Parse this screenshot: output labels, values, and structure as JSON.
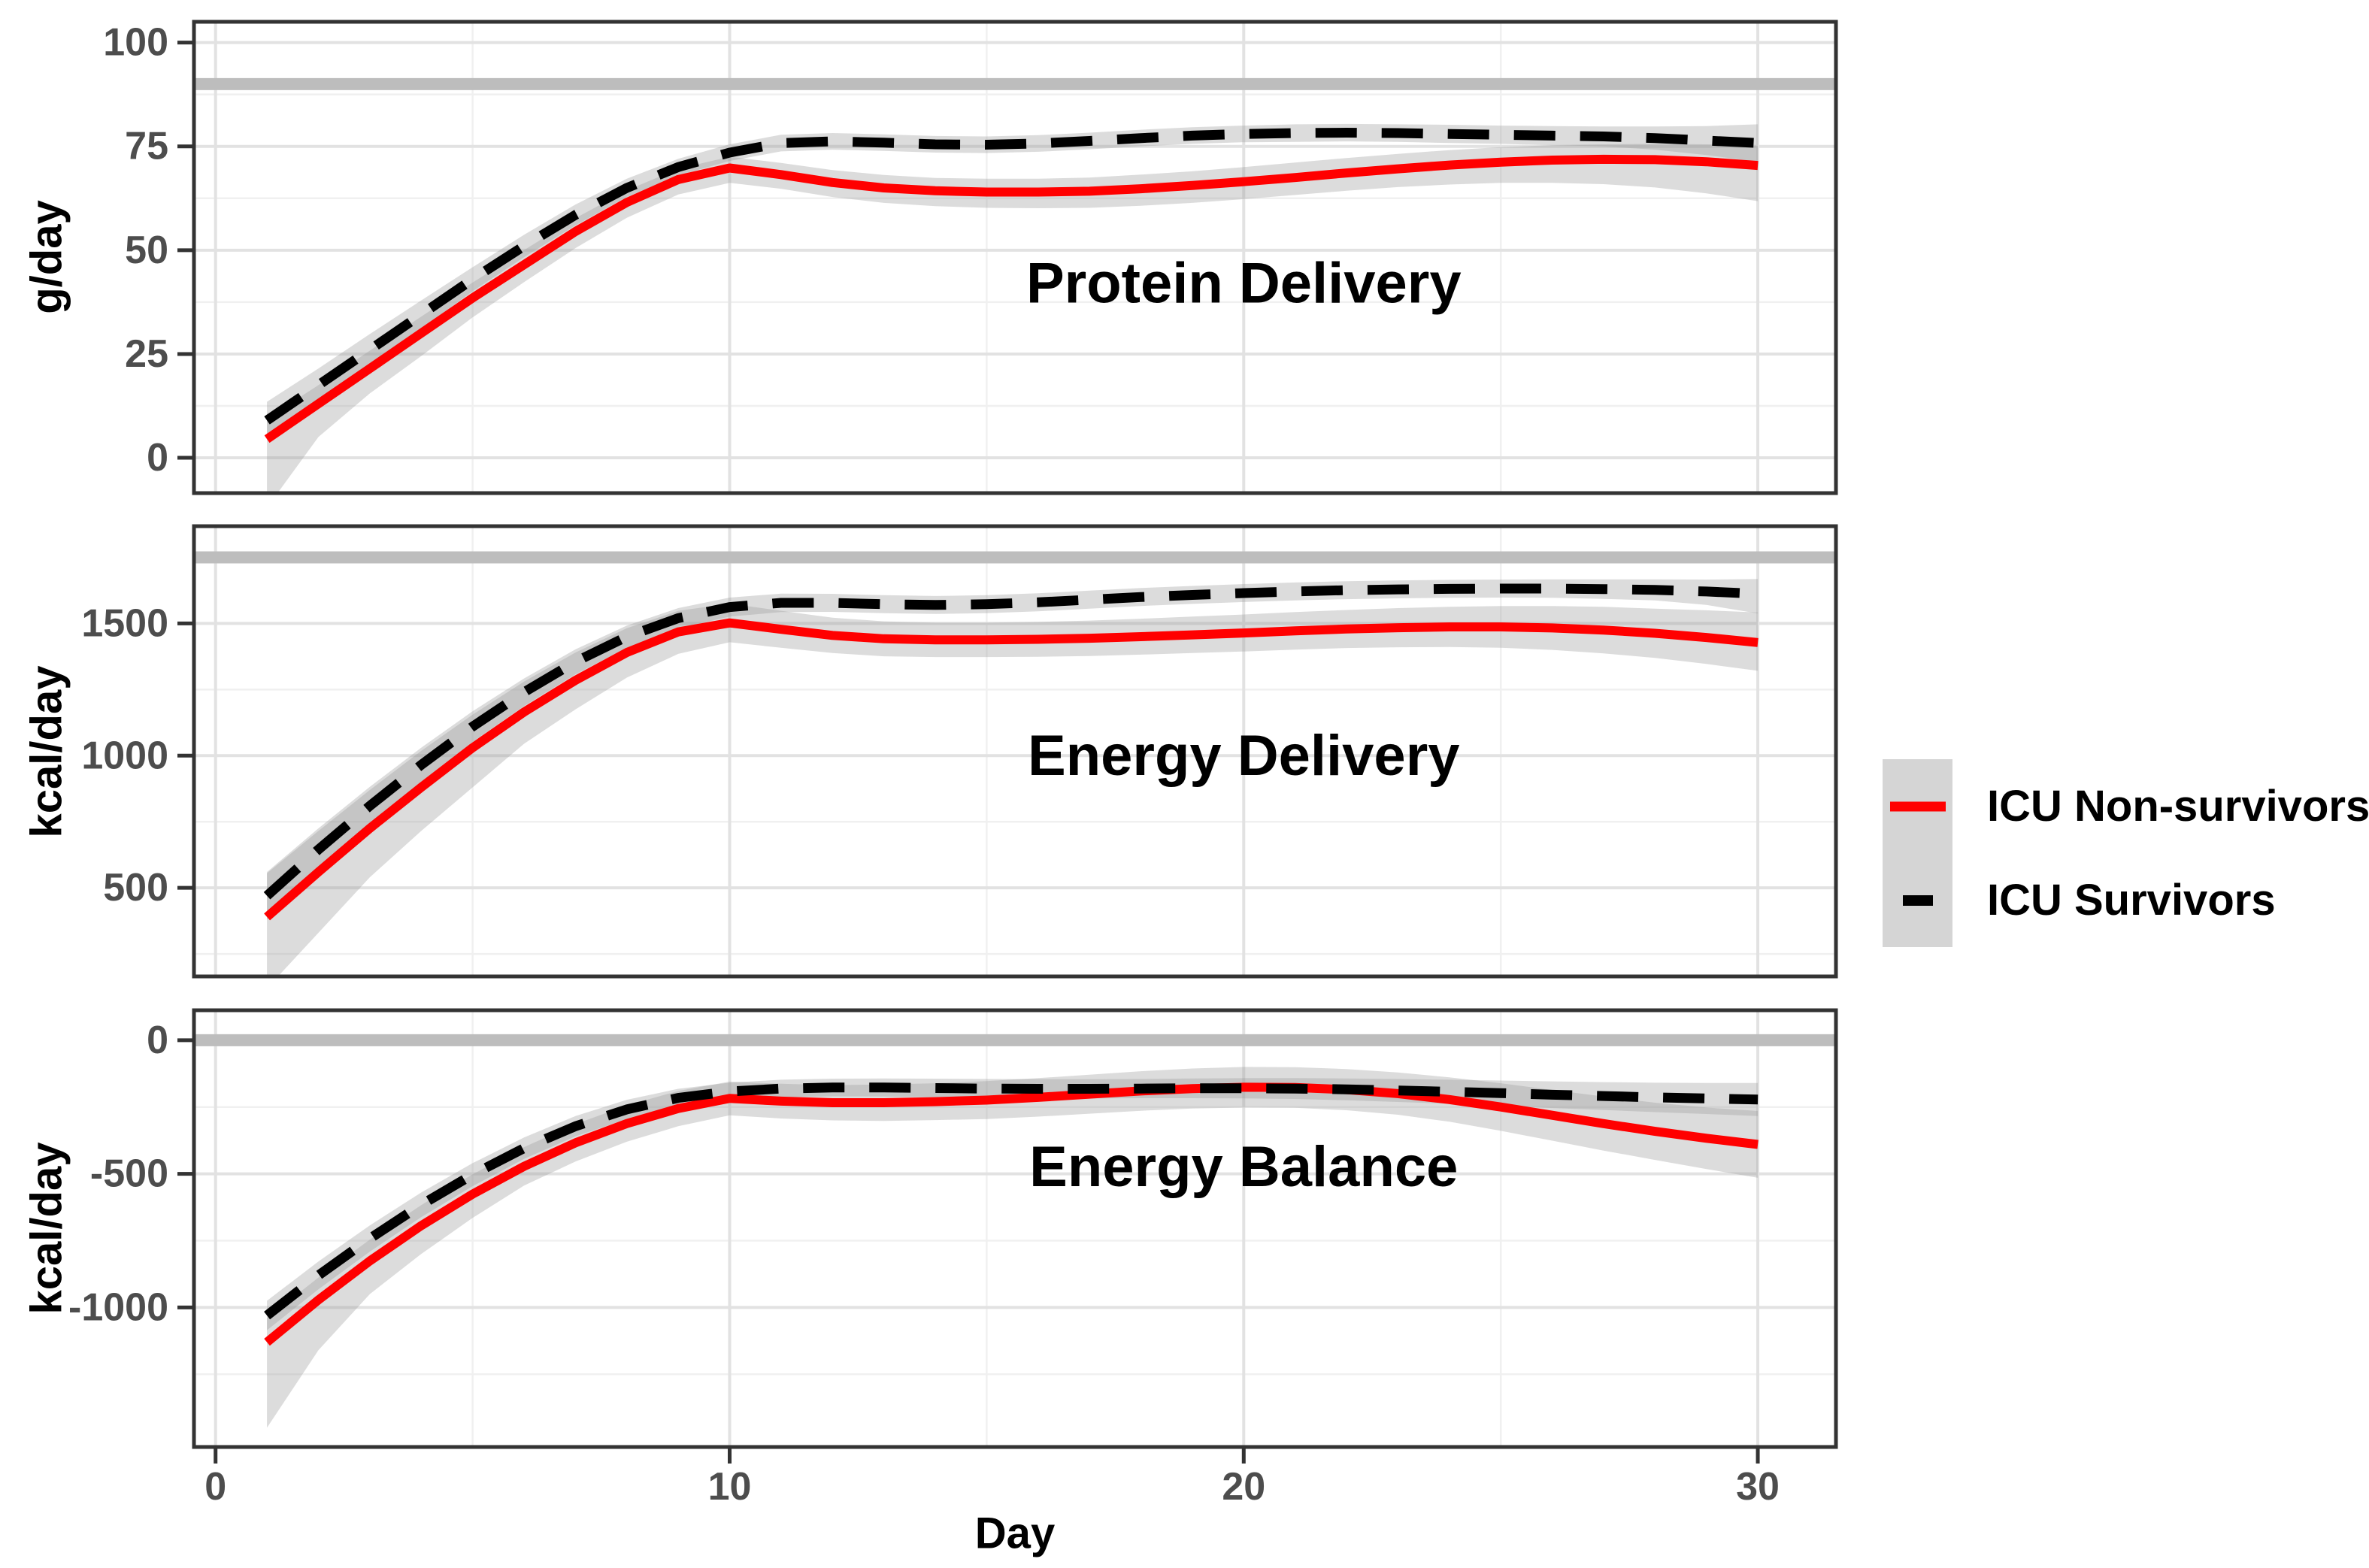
{
  "figure": {
    "kind": "faceted line chart",
    "background": "#ffffff"
  },
  "colors": {
    "non_survivor_line": "#ff0000",
    "survivor_line": "#000000",
    "ci_band": "#999999",
    "ci_band_opacity": 0.34,
    "reference_line": "#bdbdbd",
    "grid_major": "#e2e2e2",
    "grid_minor": "#f0f0f0",
    "panel_border": "#333333",
    "tick_label": "#4d4d4d",
    "legend_key_bg": "#d5d5d5"
  },
  "x_axis": {
    "title": "Day",
    "ticks": [
      0,
      10,
      20,
      30
    ],
    "tick_labels": [
      "0",
      "10",
      "20",
      "30"
    ],
    "minor_ticks": [
      5,
      15,
      25
    ],
    "domain": [
      -0.42,
      31.52
    ]
  },
  "legend": {
    "items": [
      {
        "label": "ICU Non-survivors",
        "series": "non_survivor",
        "line_style": "solid",
        "color": "#ff0000"
      },
      {
        "label": "ICU Survivors",
        "series": "survivor",
        "line_style": "dashed",
        "color": "#000000"
      }
    ]
  },
  "chart_data": [
    {
      "type": "line",
      "title": "Protein Delivery",
      "ylabel": "g/day",
      "annotation": {
        "x": 20,
        "y": 42,
        "label": "Protein Delivery"
      },
      "reference_line": 90,
      "ydomain": [
        -8.5,
        105
      ],
      "yticks": [
        0,
        25,
        50,
        75,
        100
      ],
      "ytick_labels": [
        "0",
        "25",
        "50",
        "75",
        "100"
      ],
      "yminor": [
        12.5,
        37.5,
        62.5,
        87.5
      ],
      "x": [
        1,
        2,
        3,
        4,
        5,
        6,
        7,
        8,
        9,
        10,
        11,
        12,
        13,
        14,
        15,
        16,
        17,
        18,
        19,
        20,
        21,
        22,
        23,
        24,
        25,
        26,
        27,
        28,
        29,
        30
      ],
      "series": [
        {
          "name": "ICU Non-survivors",
          "style": "solid",
          "values": [
            4.5,
            13,
            21.5,
            30,
            38.5,
            46.5,
            54.5,
            61.5,
            67,
            69.8,
            68.2,
            66.3,
            65,
            64.3,
            64,
            64,
            64.2,
            64.8,
            65.6,
            66.5,
            67.5,
            68.6,
            69.6,
            70.5,
            71.2,
            71.7,
            71.9,
            71.8,
            71.3,
            70.4
          ],
          "upper": [
            9.5,
            17.5,
            25.8,
            34,
            42.2,
            50,
            57.7,
            64.4,
            69.6,
            72.5,
            71,
            69.3,
            68.1,
            67.4,
            67.2,
            67.2,
            67.5,
            68.2,
            69,
            70,
            71.1,
            72.2,
            73.2,
            74.1,
            74.8,
            75.3,
            75.5,
            75.6,
            75.5,
            75.1
          ],
          "lower": [
            -12,
            5,
            15.5,
            24.5,
            33.8,
            42.3,
            50.5,
            57.8,
            63.4,
            66.2,
            64.8,
            62.8,
            61.4,
            60.6,
            60.2,
            60.1,
            60.2,
            60.7,
            61.4,
            62.3,
            63.3,
            64.3,
            65.2,
            65.8,
            66.2,
            66.2,
            65.9,
            65.1,
            63.7,
            61.8
          ]
        },
        {
          "name": "ICU Survivors",
          "style": "dashed",
          "values": [
            9,
            17.5,
            26,
            34.5,
            43,
            51,
            58.5,
            65,
            70,
            73.5,
            75.8,
            76.2,
            75.9,
            75.5,
            75.4,
            75.7,
            76.3,
            77,
            77.6,
            78,
            78.2,
            78.3,
            78.2,
            78,
            77.8,
            77.6,
            77.4,
            77,
            76.4,
            75.8
          ],
          "upper": [
            13.5,
            21.5,
            29.8,
            37.9,
            45.9,
            53.7,
            61,
            67.2,
            72,
            75.5,
            77.8,
            78.2,
            77.9,
            77.5,
            77.4,
            77.7,
            78.3,
            79,
            79.6,
            80,
            80.3,
            80.4,
            80.3,
            80.2,
            80,
            79.9,
            79.8,
            79.8,
            79.9,
            80.3
          ],
          "lower": [
            4.5,
            13.5,
            22.2,
            31.1,
            40.1,
            48.3,
            56,
            62.8,
            68,
            71.5,
            73.8,
            74.2,
            73.9,
            73.5,
            73.4,
            73.7,
            74.3,
            75,
            75.6,
            76,
            76.1,
            76.2,
            76.1,
            75.8,
            75.6,
            75.3,
            75,
            74.2,
            72.9,
            71.3
          ]
        }
      ]
    },
    {
      "type": "line",
      "title": "Energy Delivery",
      "ylabel": "kcal/day",
      "annotation": {
        "x": 20,
        "y": 1000,
        "label": "Energy Delivery"
      },
      "reference_line": 1750,
      "ydomain": [
        165,
        1868
      ],
      "yticks": [
        500,
        1000,
        1500
      ],
      "ytick_labels": [
        "500",
        "1000",
        "1500"
      ],
      "yminor": [
        250,
        750,
        1250,
        1750
      ],
      "x": [
        1,
        2,
        3,
        4,
        5,
        6,
        7,
        8,
        9,
        10,
        11,
        12,
        13,
        14,
        15,
        16,
        17,
        18,
        19,
        20,
        21,
        22,
        23,
        24,
        25,
        26,
        27,
        28,
        29,
        30
      ],
      "series": [
        {
          "name": "ICU Non-survivors",
          "style": "solid",
          "values": [
            390,
            560,
            725,
            880,
            1030,
            1165,
            1285,
            1390,
            1468,
            1502,
            1478,
            1455,
            1442,
            1438,
            1438,
            1440,
            1444,
            1450,
            1457,
            1464,
            1472,
            1479,
            1484,
            1487,
            1487,
            1483,
            1475,
            1463,
            1447,
            1428
          ],
          "upper": [
            555,
            715,
            870,
            1018,
            1155,
            1280,
            1390,
            1482,
            1548,
            1575,
            1548,
            1522,
            1508,
            1503,
            1503,
            1506,
            1511,
            1518,
            1526,
            1534,
            1543,
            1551,
            1558,
            1563,
            1566,
            1566,
            1563,
            1556,
            1550,
            1542
          ],
          "lower": [
            120,
            330,
            540,
            715,
            880,
            1045,
            1175,
            1295,
            1385,
            1429,
            1408,
            1388,
            1376,
            1373,
            1373,
            1374,
            1377,
            1382,
            1388,
            1394,
            1401,
            1407,
            1410,
            1411,
            1408,
            1400,
            1387,
            1370,
            1347,
            1321
          ]
        },
        {
          "name": "ICU Survivors",
          "style": "dashed",
          "values": [
            470,
            645,
            810,
            965,
            1110,
            1240,
            1355,
            1450,
            1520,
            1562,
            1578,
            1578,
            1573,
            1570,
            1573,
            1580,
            1590,
            1600,
            1608,
            1615,
            1621,
            1626,
            1629,
            1631,
            1632,
            1632,
            1630,
            1627,
            1621,
            1612
          ],
          "upper": [
            560,
            725,
            882,
            1030,
            1168,
            1292,
            1402,
            1492,
            1558,
            1598,
            1613,
            1612,
            1607,
            1604,
            1607,
            1614,
            1624,
            1634,
            1642,
            1649,
            1655,
            1660,
            1663,
            1665,
            1666,
            1667,
            1667,
            1667,
            1666,
            1668
          ],
          "lower": [
            380,
            565,
            738,
            900,
            1052,
            1188,
            1308,
            1408,
            1482,
            1526,
            1543,
            1544,
            1539,
            1536,
            1539,
            1546,
            1556,
            1566,
            1574,
            1581,
            1587,
            1592,
            1595,
            1597,
            1598,
            1597,
            1593,
            1587,
            1570,
            1538
          ]
        }
      ]
    },
    {
      "type": "line",
      "title": "Energy Balance",
      "ylabel": "kcal/day",
      "annotation": {
        "x": 20,
        "y": -475,
        "label": "Energy Balance"
      },
      "reference_line": 0,
      "ydomain": [
        -1522,
        112
      ],
      "yticks": [
        -1000,
        -500,
        0
      ],
      "ytick_labels": [
        "-1000",
        "-500",
        "0"
      ],
      "yminor": [
        -1250,
        -750,
        -250
      ],
      "x": [
        1,
        2,
        3,
        4,
        5,
        6,
        7,
        8,
        9,
        10,
        11,
        12,
        13,
        14,
        15,
        16,
        17,
        18,
        19,
        20,
        21,
        22,
        23,
        24,
        25,
        26,
        27,
        28,
        29,
        30
      ],
      "series": [
        {
          "name": "ICU Non-survivors",
          "style": "solid",
          "values": [
            -1130,
            -972,
            -826,
            -694,
            -576,
            -472,
            -384,
            -312,
            -256,
            -218,
            -228,
            -234,
            -234,
            -230,
            -224,
            -214,
            -202,
            -190,
            -181,
            -176,
            -177,
            -185,
            -200,
            -222,
            -250,
            -281,
            -312,
            -341,
            -367,
            -390
          ],
          "upper": [
            -1040,
            -888,
            -746,
            -617,
            -502,
            -400,
            -314,
            -244,
            -190,
            -155,
            -163,
            -168,
            -166,
            -161,
            -153,
            -142,
            -129,
            -116,
            -106,
            -100,
            -101,
            -108,
            -121,
            -139,
            -161,
            -186,
            -211,
            -234,
            -252,
            -265
          ],
          "lower": [
            -1450,
            -1160,
            -950,
            -800,
            -665,
            -544,
            -454,
            -380,
            -322,
            -281,
            -293,
            -300,
            -302,
            -299,
            -295,
            -286,
            -275,
            -264,
            -256,
            -252,
            -253,
            -262,
            -279,
            -305,
            -339,
            -376,
            -413,
            -448,
            -482,
            -515
          ]
        },
        {
          "name": "ICU Survivors",
          "style": "dashed",
          "values": [
            -1030,
            -880,
            -742,
            -616,
            -503,
            -404,
            -322,
            -259,
            -216,
            -192,
            -181,
            -177,
            -177,
            -179,
            -181,
            -182,
            -182,
            -181,
            -180,
            -180,
            -181,
            -184,
            -188,
            -193,
            -198,
            -204,
            -209,
            -214,
            -218,
            -222
          ],
          "upper": [
            -975,
            -828,
            -693,
            -570,
            -460,
            -364,
            -284,
            -223,
            -182,
            -159,
            -148,
            -144,
            -143,
            -144,
            -145,
            -146,
            -146,
            -145,
            -143,
            -142,
            -142,
            -143,
            -145,
            -148,
            -151,
            -154,
            -157,
            -159,
            -160,
            -160
          ],
          "lower": [
            -1085,
            -932,
            -791,
            -662,
            -546,
            -444,
            -360,
            -295,
            -250,
            -225,
            -214,
            -210,
            -211,
            -214,
            -217,
            -218,
            -218,
            -217,
            -217,
            -218,
            -220,
            -225,
            -231,
            -238,
            -245,
            -254,
            -261,
            -269,
            -276,
            -284
          ]
        }
      ]
    }
  ]
}
